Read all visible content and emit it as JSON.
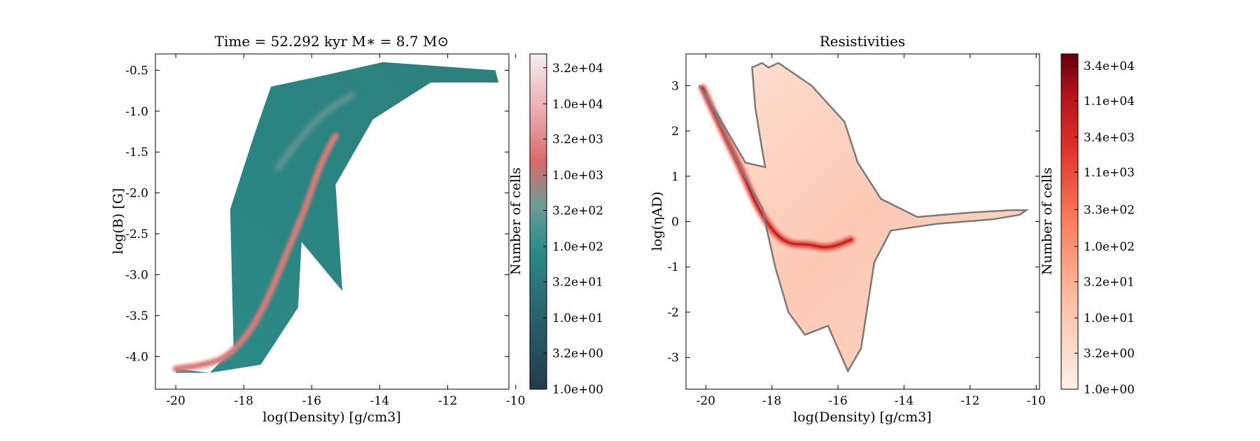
{
  "chart_data": [
    {
      "type": "heatmap",
      "title": "Time = 52.292 kyr    M$_*$ = 8.7 M$_\\odot$",
      "title_display": "Time = 52.292 kyr    M∗ = 8.7 M⊙",
      "xlabel": "log(Density) [g/cm3]",
      "ylabel": "log(B) [G]",
      "xlim": [
        -20.6,
        -10.2
      ],
      "ylim": [
        -4.4,
        -0.3
      ],
      "x_ticks": [
        -20,
        -18,
        -16,
        -14,
        -12,
        -10
      ],
      "x_tick_labels": [
        "-20",
        "-18",
        "-16",
        "-14",
        "-12",
        "-10"
      ],
      "y_ticks": [
        -4.0,
        -3.5,
        -3.0,
        -2.5,
        -2.0,
        -1.5,
        -1.0,
        -0.5
      ],
      "y_tick_labels": [
        "-4.0",
        "-3.5",
        "-3.0",
        "-2.5",
        "-2.0",
        "-1.5",
        "-1.0",
        "-0.5"
      ],
      "colormap": "diverging teal-to-red",
      "colors": [
        "#233a4f",
        "#2a8d89",
        "#6f9b97",
        "#d86a6a",
        "#f5e8ea"
      ],
      "colorbar": {
        "label": "Number of cells",
        "scale": "log",
        "range": [
          1,
          50000
        ],
        "tick_labels": [
          "1.0e+00",
          "3.2e+00",
          "1.0e+01",
          "3.2e+01",
          "1.0e+02",
          "3.2e+02",
          "1.0e+03",
          "3.2e+03",
          "1.0e+04",
          "3.2e+04"
        ]
      },
      "region_outline": [
        [
          -20.0,
          -4.15
        ],
        [
          -19.0,
          -4.2
        ],
        [
          -18.3,
          -3.9
        ],
        [
          -18.4,
          -2.2
        ],
        [
          -17.7,
          -1.3
        ],
        [
          -17.2,
          -0.7
        ],
        [
          -15.5,
          -0.55
        ],
        [
          -13.9,
          -0.4
        ],
        [
          -10.6,
          -0.5
        ],
        [
          -10.5,
          -0.65
        ],
        [
          -12.5,
          -0.65
        ],
        [
          -14.2,
          -1.1
        ],
        [
          -15.3,
          -1.9
        ],
        [
          -15.1,
          -3.2
        ],
        [
          -16.3,
          -2.6
        ],
        [
          -16.4,
          -3.4
        ],
        [
          -17.5,
          -4.1
        ],
        [
          -19.0,
          -4.2
        ],
        [
          -20.0,
          -4.2
        ]
      ],
      "ridge": [
        [
          -20.0,
          -4.15
        ],
        [
          -19.0,
          -4.1
        ],
        [
          -18.3,
          -3.95
        ],
        [
          -17.5,
          -3.5
        ],
        [
          -16.8,
          -2.8
        ],
        [
          -16.2,
          -2.2
        ],
        [
          -15.7,
          -1.6
        ],
        [
          -15.3,
          -1.3
        ]
      ],
      "secondary_ridge": [
        [
          -17.0,
          -1.7
        ],
        [
          -16.3,
          -1.3
        ],
        [
          -15.6,
          -1.0
        ],
        [
          -14.8,
          -0.8
        ]
      ]
    },
    {
      "type": "heatmap",
      "title": "Resistivities",
      "xlabel": "log(Density) [g/cm3]",
      "ylabel": "log($\\eta_{\\rm AD}$)",
      "ylabel_display": "log(ηAD)",
      "xlim": [
        -20.6,
        -9.9
      ],
      "ylim": [
        -3.7,
        3.7
      ],
      "x_ticks": [
        -20,
        -18,
        -16,
        -14,
        -12,
        -10
      ],
      "x_tick_labels": [
        "-20",
        "-18",
        "-16",
        "-14",
        "-12",
        "-10"
      ],
      "y_ticks": [
        -3,
        -2,
        -1,
        0,
        1,
        2,
        3
      ],
      "y_tick_labels": [
        "-3",
        "-2",
        "-1",
        "0",
        "1",
        "2",
        "3"
      ],
      "colormap": "Reds",
      "colors": [
        "#fee5d9",
        "#fcae91",
        "#fb6a4a",
        "#de2d26",
        "#67000d"
      ],
      "contour_color": "#7a7a7a",
      "colorbar": {
        "label": "Number of cells",
        "scale": "log",
        "range": [
          1,
          50000
        ],
        "tick_labels": [
          "1.0e+00",
          "3.2e+00",
          "1.0e+01",
          "3.2e+01",
          "1.0e+02",
          "3.3e+02",
          "1.1e+03",
          "3.4e+03",
          "1.1e+04",
          "3.4e+04"
        ]
      },
      "region_outline": [
        [
          -20.2,
          3.0
        ],
        [
          -20.0,
          2.8
        ],
        [
          -18.9,
          1.1
        ],
        [
          -18.3,
          0.3
        ],
        [
          -17.9,
          -1.0
        ],
        [
          -17.5,
          -2.0
        ],
        [
          -17.0,
          -2.5
        ],
        [
          -16.3,
          -2.3
        ],
        [
          -15.7,
          -3.3
        ],
        [
          -15.3,
          -2.8
        ],
        [
          -14.9,
          -0.9
        ],
        [
          -14.4,
          -0.2
        ],
        [
          -13.0,
          -0.05
        ],
        [
          -11.3,
          0.05
        ],
        [
          -10.5,
          0.15
        ],
        [
          -10.3,
          0.25
        ],
        [
          -10.8,
          0.25
        ],
        [
          -12.0,
          0.2
        ],
        [
          -13.6,
          0.1
        ],
        [
          -14.7,
          0.5
        ],
        [
          -15.4,
          1.3
        ],
        [
          -15.8,
          2.2
        ],
        [
          -16.8,
          3.0
        ],
        [
          -17.4,
          3.3
        ],
        [
          -17.8,
          3.5
        ],
        [
          -18.1,
          3.4
        ],
        [
          -18.3,
          3.5
        ],
        [
          -18.6,
          3.4
        ],
        [
          -18.5,
          2.5
        ],
        [
          -18.3,
          1.6
        ],
        [
          -18.2,
          1.2
        ],
        [
          -18.8,
          1.3
        ],
        [
          -19.6,
          2.3
        ],
        [
          -20.2,
          3.0
        ]
      ],
      "ridge": [
        [
          -20.1,
          2.95
        ],
        [
          -19.5,
          2.0
        ],
        [
          -18.9,
          1.1
        ],
        [
          -18.5,
          0.4
        ],
        [
          -18.0,
          -0.2
        ],
        [
          -17.5,
          -0.5
        ],
        [
          -16.9,
          -0.5
        ],
        [
          -16.3,
          -0.6
        ],
        [
          -15.6,
          -0.4
        ]
      ]
    }
  ]
}
